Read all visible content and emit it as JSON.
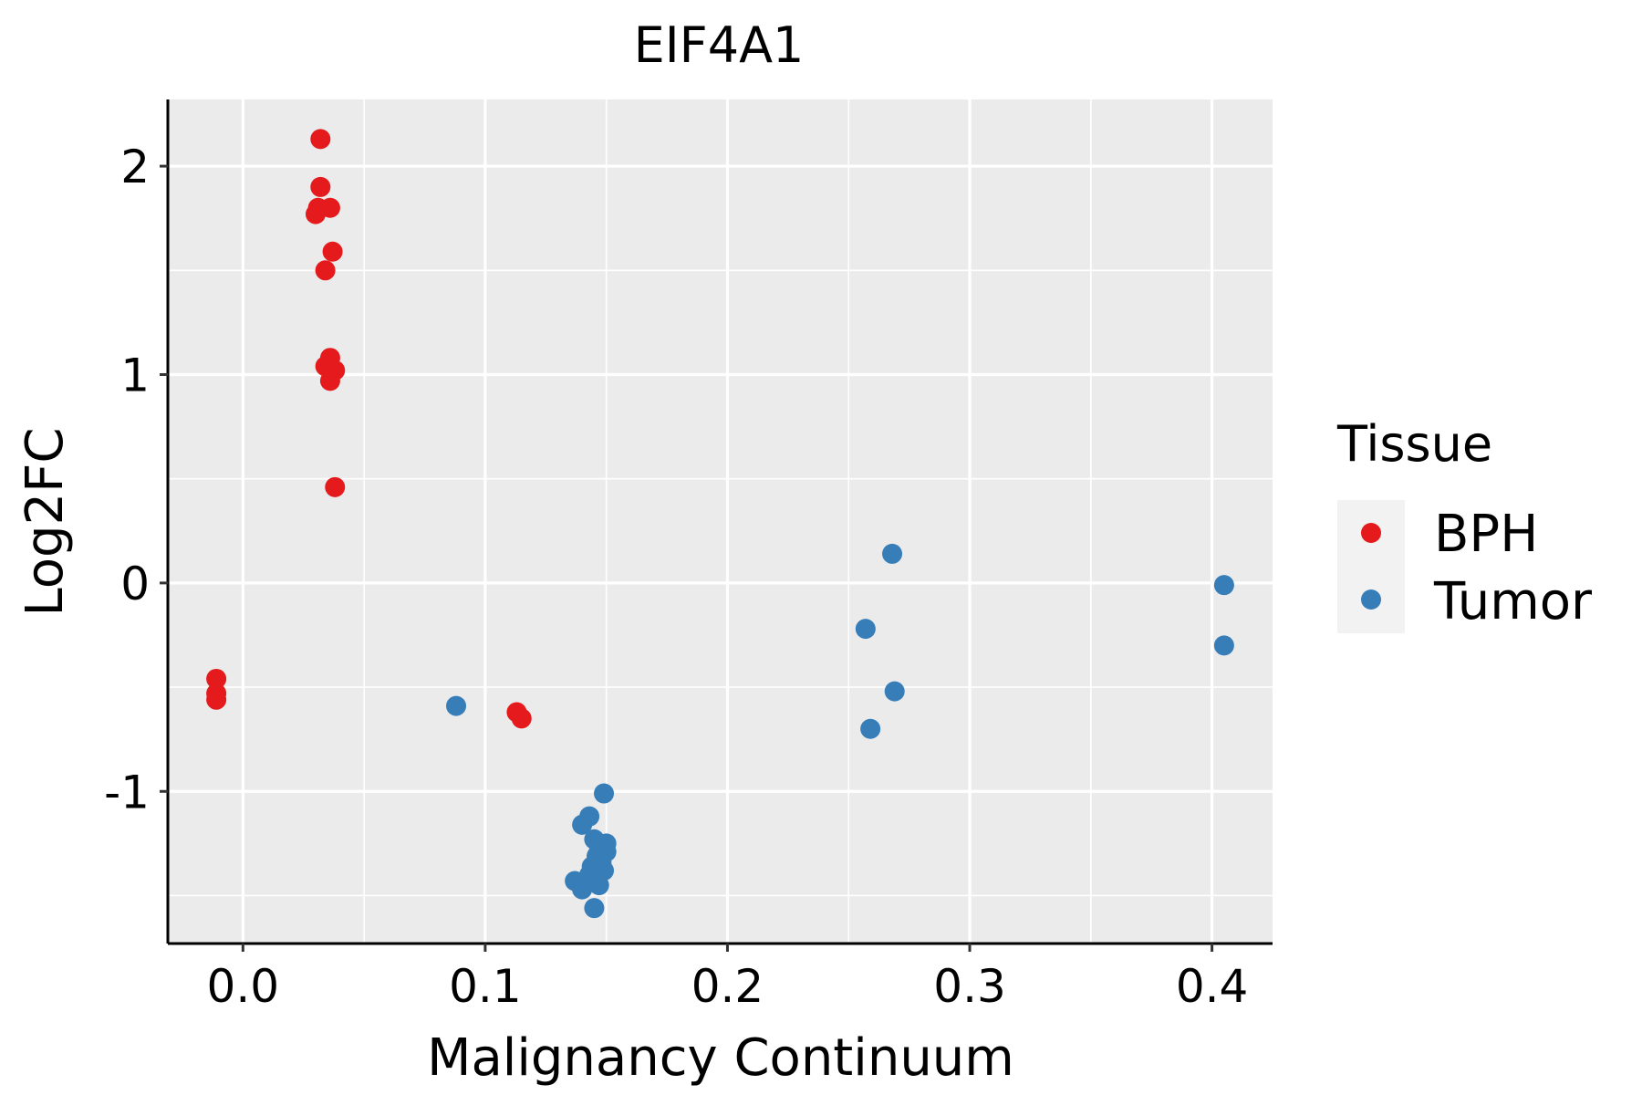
{
  "chart_data": {
    "type": "scatter",
    "title": "EIF4A1",
    "xlabel": "Malignancy Continuum",
    "ylabel": "Log2FC",
    "xlim": [
      -0.031,
      0.425
    ],
    "ylim": [
      -1.73,
      2.32
    ],
    "xticks": [
      0.0,
      0.1,
      0.2,
      0.3,
      0.4
    ],
    "xtick_labels": [
      "0.0",
      "0.1",
      "0.2",
      "0.3",
      "0.4"
    ],
    "yticks": [
      -1,
      0,
      1,
      2
    ],
    "ytick_labels": [
      "-1",
      "0",
      "1",
      "2"
    ],
    "x_minor": [
      0.05,
      0.15,
      0.25,
      0.35
    ],
    "y_minor": [
      -1.5,
      -0.5,
      0.5,
      1.5
    ],
    "grid": true,
    "legend": {
      "title": "Tissue",
      "position": "right",
      "entries": [
        {
          "label": "BPH",
          "color": "#e41a1c"
        },
        {
          "label": "Tumor",
          "color": "#377eb8"
        }
      ]
    },
    "series": [
      {
        "name": "BPH",
        "color": "#e41a1c",
        "points": [
          [
            0.032,
            2.13
          ],
          [
            0.032,
            1.9
          ],
          [
            0.031,
            1.8
          ],
          [
            0.03,
            1.77
          ],
          [
            0.036,
            1.8
          ],
          [
            0.037,
            1.59
          ],
          [
            0.034,
            1.5
          ],
          [
            0.036,
            1.08
          ],
          [
            0.034,
            1.04
          ],
          [
            0.038,
            1.02
          ],
          [
            0.036,
            0.97
          ],
          [
            0.038,
            0.46
          ],
          [
            -0.011,
            -0.46
          ],
          [
            -0.011,
            -0.53
          ],
          [
            -0.011,
            -0.56
          ],
          [
            0.113,
            -0.62
          ],
          [
            0.115,
            -0.65
          ]
        ]
      },
      {
        "name": "Tumor",
        "color": "#377eb8",
        "points": [
          [
            0.268,
            0.14
          ],
          [
            0.257,
            -0.22
          ],
          [
            0.269,
            -0.52
          ],
          [
            0.259,
            -0.7
          ],
          [
            0.405,
            -0.01
          ],
          [
            0.405,
            -0.3
          ],
          [
            0.088,
            -0.59
          ],
          [
            0.149,
            -1.01
          ],
          [
            0.143,
            -1.12
          ],
          [
            0.14,
            -1.16
          ],
          [
            0.145,
            -1.23
          ],
          [
            0.15,
            -1.25
          ],
          [
            0.147,
            -1.28
          ],
          [
            0.15,
            -1.29
          ],
          [
            0.146,
            -1.31
          ],
          [
            0.148,
            -1.34
          ],
          [
            0.144,
            -1.36
          ],
          [
            0.149,
            -1.38
          ],
          [
            0.143,
            -1.4
          ],
          [
            0.146,
            -1.42
          ],
          [
            0.137,
            -1.43
          ],
          [
            0.141,
            -1.44
          ],
          [
            0.147,
            -1.45
          ],
          [
            0.14,
            -1.47
          ],
          [
            0.145,
            -1.56
          ]
        ]
      }
    ]
  }
}
